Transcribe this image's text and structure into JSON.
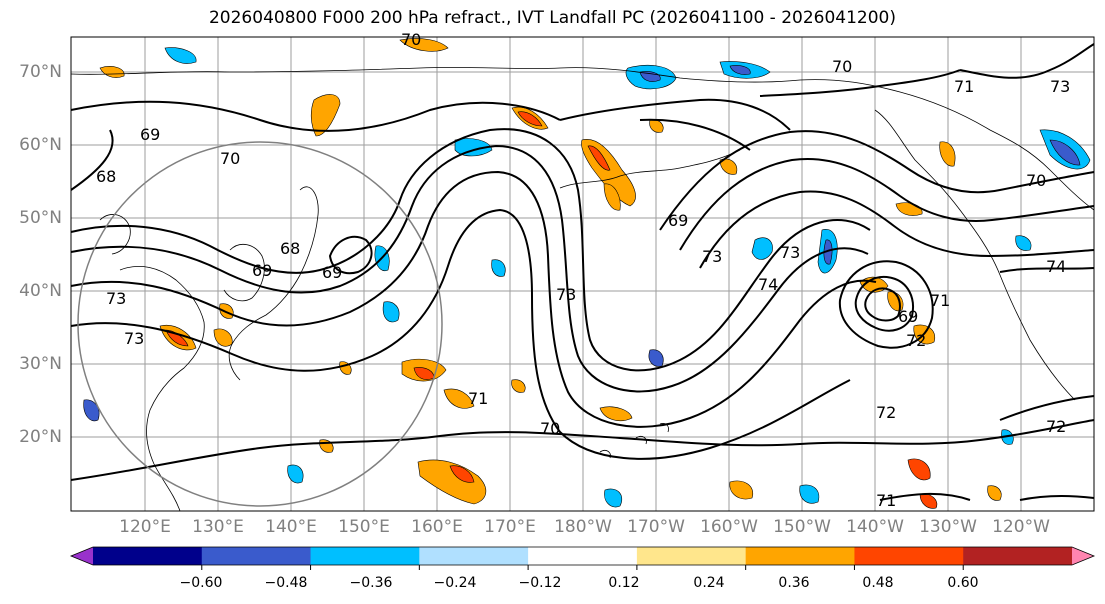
{
  "title": "2026040800 F000 200 hPa refract., IVT Landfall PC (2026041100 - 2026041200)",
  "lat_labels": [
    "70°N",
    "60°N",
    "50°N",
    "40°N",
    "30°N",
    "20°N"
  ],
  "lon_labels": [
    "120°E",
    "130°E",
    "140°E",
    "150°E",
    "160°E",
    "170°E",
    "180°W",
    "170°W",
    "160°W",
    "150°W",
    "140°W",
    "130°W",
    "120°W"
  ],
  "contour_labels": [
    "70",
    "70",
    "71",
    "73",
    "69",
    "70",
    "68",
    "69",
    "68",
    "69",
    "73",
    "73",
    "69",
    "73",
    "73",
    "74",
    "74",
    "70",
    "69",
    "71",
    "72",
    "71",
    "70",
    "72",
    "72",
    "71",
    "73"
  ],
  "colorbar": {
    "ticks": [
      "−0.60",
      "−0.48",
      "−0.36",
      "−0.24",
      "−0.12",
      "0.12",
      "0.24",
      "0.36",
      "0.48",
      "0.60"
    ],
    "colors": [
      "#9932cc",
      "#00008b",
      "#3a5bcc",
      "#00bfff",
      "#b0e0ff",
      "#ffffff",
      "#ffe68c",
      "#ffa500",
      "#ff4500",
      "#b22222",
      "#ff85b0"
    ]
  },
  "colors": {
    "coast": "#000000",
    "grid": "#999999",
    "contour": "#000000",
    "axis_label": "#808080"
  }
}
